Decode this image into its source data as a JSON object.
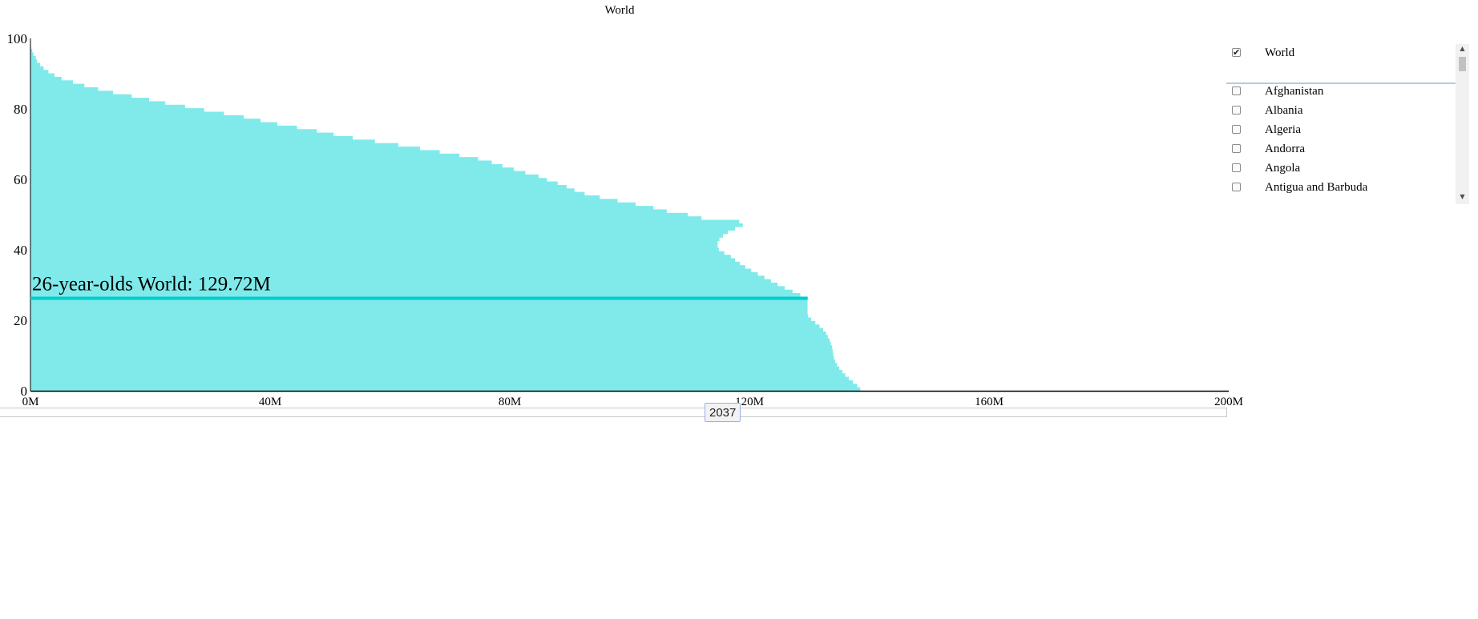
{
  "title": "World",
  "chart_data": {
    "type": "bar",
    "orientation": "horizontal",
    "title": "World",
    "xlabel": "",
    "ylabel": "",
    "xlim": [
      0,
      200000000
    ],
    "ylim": [
      0,
      100
    ],
    "x_ticks": [
      "0M",
      "40M",
      "80M",
      "120M",
      "160M",
      "200M"
    ],
    "y_ticks": [
      "0",
      "20",
      "40",
      "60",
      "80",
      "100"
    ],
    "color": "#80eaea",
    "highlight_color": "#00cccc",
    "ages": [
      0,
      1,
      2,
      3,
      4,
      5,
      6,
      7,
      8,
      9,
      10,
      11,
      12,
      13,
      14,
      15,
      16,
      17,
      18,
      19,
      20,
      21,
      22,
      23,
      24,
      25,
      26,
      27,
      28,
      29,
      30,
      31,
      32,
      33,
      34,
      35,
      36,
      37,
      38,
      39,
      40,
      41,
      42,
      43,
      44,
      45,
      46,
      47,
      48,
      49,
      50,
      51,
      52,
      53,
      54,
      55,
      56,
      57,
      58,
      59,
      60,
      61,
      62,
      63,
      64,
      65,
      66,
      67,
      68,
      69,
      70,
      71,
      72,
      73,
      74,
      75,
      76,
      77,
      78,
      79,
      80,
      81,
      82,
      83,
      84,
      85,
      86,
      87,
      88,
      89,
      90,
      91,
      92,
      93,
      94,
      95,
      96,
      97,
      98,
      99,
      100
    ],
    "values": [
      138.5,
      138.0,
      137.3,
      136.6,
      136.0,
      135.5,
      135.0,
      134.6,
      134.3,
      134.1,
      134.0,
      133.9,
      133.8,
      133.6,
      133.4,
      133.1,
      132.8,
      132.3,
      131.7,
      131.0,
      130.3,
      129.8,
      129.7,
      129.7,
      129.7,
      129.7,
      129.72,
      128.5,
      127.2,
      125.9,
      124.7,
      123.6,
      122.5,
      121.4,
      120.3,
      119.3,
      118.4,
      117.6,
      116.9,
      115.8,
      114.9,
      114.7,
      114.7,
      115.0,
      115.6,
      116.4,
      117.6,
      118.9,
      118.3,
      112.0,
      109.7,
      106.2,
      104.0,
      101.0,
      98.0,
      95.0,
      92.5,
      90.8,
      89.5,
      88.0,
      86.2,
      84.8,
      82.6,
      80.7,
      78.8,
      77.0,
      74.7,
      71.6,
      68.3,
      65.0,
      61.4,
      57.5,
      53.8,
      50.6,
      47.8,
      44.5,
      41.2,
      38.4,
      35.6,
      32.3,
      29.0,
      25.8,
      22.5,
      19.8,
      16.9,
      13.8,
      11.3,
      9.0,
      7.1,
      5.2,
      4.0,
      3.0,
      2.2,
      1.6,
      1.1,
      0.9,
      0.5,
      0.3,
      0.1,
      0.05,
      0.02
    ],
    "highlight": {
      "age": 26,
      "value": 129.72,
      "label": "26-year-olds World: 129.72M"
    }
  },
  "slider": {
    "year": "2037"
  },
  "countries": [
    {
      "name": "World",
      "checked": true
    },
    {
      "name": "Afghanistan",
      "checked": false
    },
    {
      "name": "Albania",
      "checked": false
    },
    {
      "name": "Algeria",
      "checked": false
    },
    {
      "name": "Andorra",
      "checked": false
    },
    {
      "name": "Angola",
      "checked": false
    },
    {
      "name": "Antigua and Barbuda",
      "checked": false
    }
  ],
  "scroll": {
    "up_icon": "up-arrow-icon",
    "down_icon": "down-arrow-icon"
  }
}
